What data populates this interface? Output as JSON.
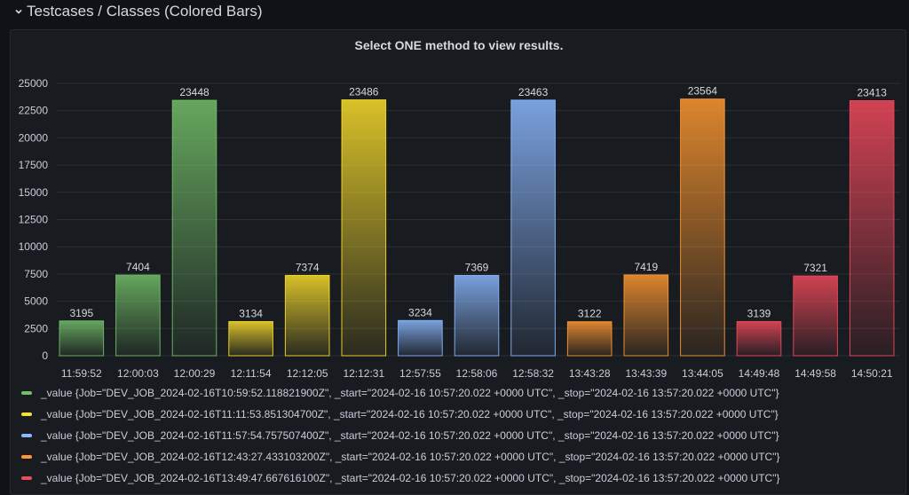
{
  "row": {
    "title": "Testcases / Classes (Colored Bars)",
    "collapse_icon": "chevron-down-icon"
  },
  "panel": {
    "title": "Select ONE method to view results."
  },
  "chart_data": {
    "type": "bar",
    "title": "Select ONE method to view results.",
    "categories": [
      "11:59:52",
      "12:00:03",
      "12:00:29",
      "12:11:54",
      "12:12:05",
      "12:12:31",
      "12:57:55",
      "12:58:06",
      "12:58:32",
      "13:43:28",
      "13:43:39",
      "13:44:05",
      "14:49:48",
      "14:49:58",
      "14:50:21"
    ],
    "values": [
      3195,
      7404,
      23448,
      3134,
      7374,
      23486,
      3234,
      7369,
      23463,
      3122,
      7419,
      23564,
      3139,
      7321,
      23413
    ],
    "data_labels": [
      "3195",
      "7404",
      "23448",
      "3134",
      "7374",
      "23486",
      "3234",
      "7369",
      "23463",
      "3122",
      "7419",
      "23564",
      "3139",
      "7321",
      "23413"
    ],
    "bar_series_index": [
      0,
      0,
      0,
      1,
      1,
      1,
      2,
      2,
      2,
      3,
      3,
      3,
      4,
      4,
      4
    ],
    "ylim": [
      0,
      25000
    ],
    "yticks": [
      "0",
      "2500",
      "5000",
      "7500",
      "10000",
      "12500",
      "15000",
      "17500",
      "20000",
      "22500",
      "25000"
    ],
    "grid": true,
    "legend_position": "bottom",
    "series": [
      {
        "name": "_value {Job=\"DEV_JOB_2024-02-16T10:59:52.118821900Z\", _start=\"2024-02-16 10:57:20.022 +0000 UTC\", _stop=\"2024-02-16 13:57:20.022 +0000 UTC\"}",
        "color": "#73bf69"
      },
      {
        "name": "_value {Job=\"DEV_JOB_2024-02-16T11:11:53.851304700Z\", _start=\"2024-02-16 10:57:20.022 +0000 UTC\", _stop=\"2024-02-16 13:57:20.022 +0000 UTC\"}",
        "color": "#fade2a"
      },
      {
        "name": "_value {Job=\"DEV_JOB_2024-02-16T11:57:54.757507400Z\", _start=\"2024-02-16 10:57:20.022 +0000 UTC\", _stop=\"2024-02-16 13:57:20.022 +0000 UTC\"}",
        "color": "#8ab8ff"
      },
      {
        "name": "_value {Job=\"DEV_JOB_2024-02-16T12:43:27.433103200Z\", _start=\"2024-02-16 10:57:20.022 +0000 UTC\", _stop=\"2024-02-16 13:57:20.022 +0000 UTC\"}",
        "color": "#ff9830"
      },
      {
        "name": "_value {Job=\"DEV_JOB_2024-02-16T13:49:47.667616100Z\", _start=\"2024-02-16 10:57:20.022 +0000 UTC\", _stop=\"2024-02-16 13:57:20.022 +0000 UTC\"}",
        "color": "#f2495c"
      }
    ]
  }
}
